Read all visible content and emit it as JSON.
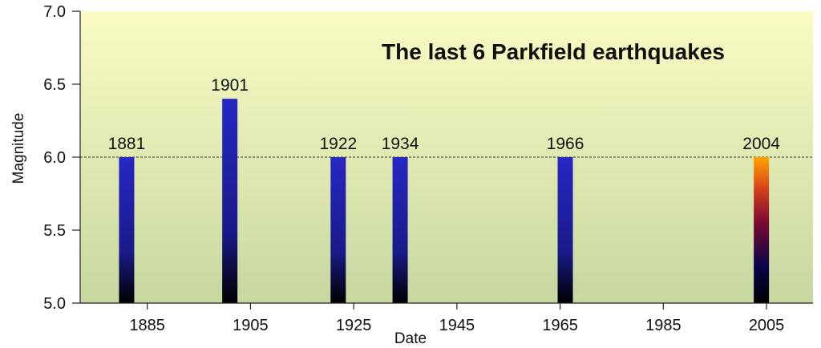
{
  "chart_data": {
    "type": "bar",
    "title": "The last 6 Parkfield earthquakes",
    "xlabel": "Date",
    "ylabel": "Magnitude",
    "xlim": [
      1872,
      2014
    ],
    "ylim": [
      5.0,
      7.0
    ],
    "xticks": [
      1885,
      1905,
      1925,
      1945,
      1965,
      1985,
      2005
    ],
    "yticks": [
      "5.0",
      "5.5",
      "6.0",
      "6.5",
      "7.0"
    ],
    "reference_line": 6.0,
    "bars": [
      {
        "year": 1881,
        "label": "1881",
        "value": 6.0,
        "style": "blue"
      },
      {
        "year": 1901,
        "label": "1901",
        "value": 6.4,
        "style": "blue"
      },
      {
        "year": 1922,
        "label": "1922",
        "value": 6.0,
        "style": "blue"
      },
      {
        "year": 1934,
        "label": "1934",
        "value": 6.0,
        "style": "blue"
      },
      {
        "year": 1966,
        "label": "1966",
        "value": 6.0,
        "style": "blue"
      },
      {
        "year": 2004,
        "label": "2004",
        "value": 6.0,
        "style": "fire"
      }
    ],
    "colors": {
      "bg_top": "#fbfbc4",
      "bg_bottom": "#c6d7a0",
      "bar_top": "#2727c4",
      "bar_bottom": "#000000",
      "fire_top": "#ffa300",
      "fire_mid": "#7a0a33",
      "fire_low": "#08044a",
      "fire_bottom": "#000000"
    },
    "grid": false
  }
}
